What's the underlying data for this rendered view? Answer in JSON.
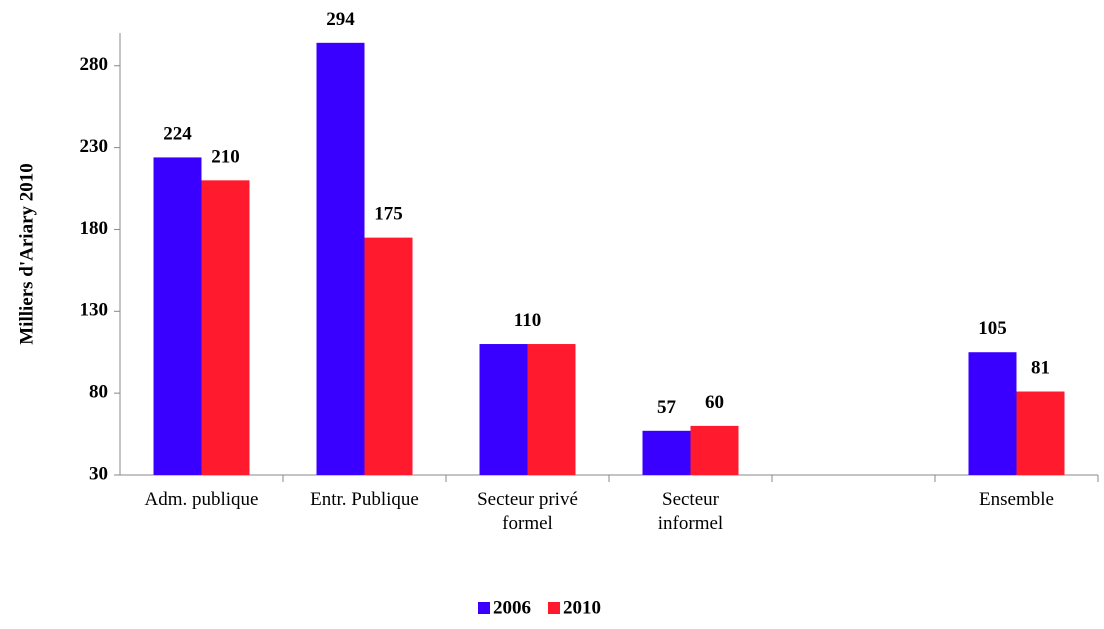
{
  "chart_data": {
    "type": "bar",
    "y_label": "Milliers d'Ariary 2010",
    "categories": [
      "Adm. publique",
      "Entr. Publique",
      "Secteur privé\nformel",
      "Secteur\ninformel",
      null,
      "Ensemble"
    ],
    "series": [
      {
        "name": "2006",
        "color": "#3a00ff",
        "values": [
          224,
          294,
          110,
          57,
          null,
          105
        ],
        "value_labels": [
          "224",
          "294",
          "110",
          "57",
          null,
          "105"
        ]
      },
      {
        "name": "2010",
        "color": "#ff1a2e",
        "values": [
          210,
          175,
          110,
          60,
          null,
          81
        ],
        "value_labels": [
          "210",
          "175",
          null,
          "60",
          null,
          "81"
        ]
      }
    ],
    "ylim": [
      30,
      300
    ],
    "yticks": [
      30,
      80,
      130,
      180,
      230,
      280
    ],
    "grid": false,
    "legend": "bottom"
  }
}
